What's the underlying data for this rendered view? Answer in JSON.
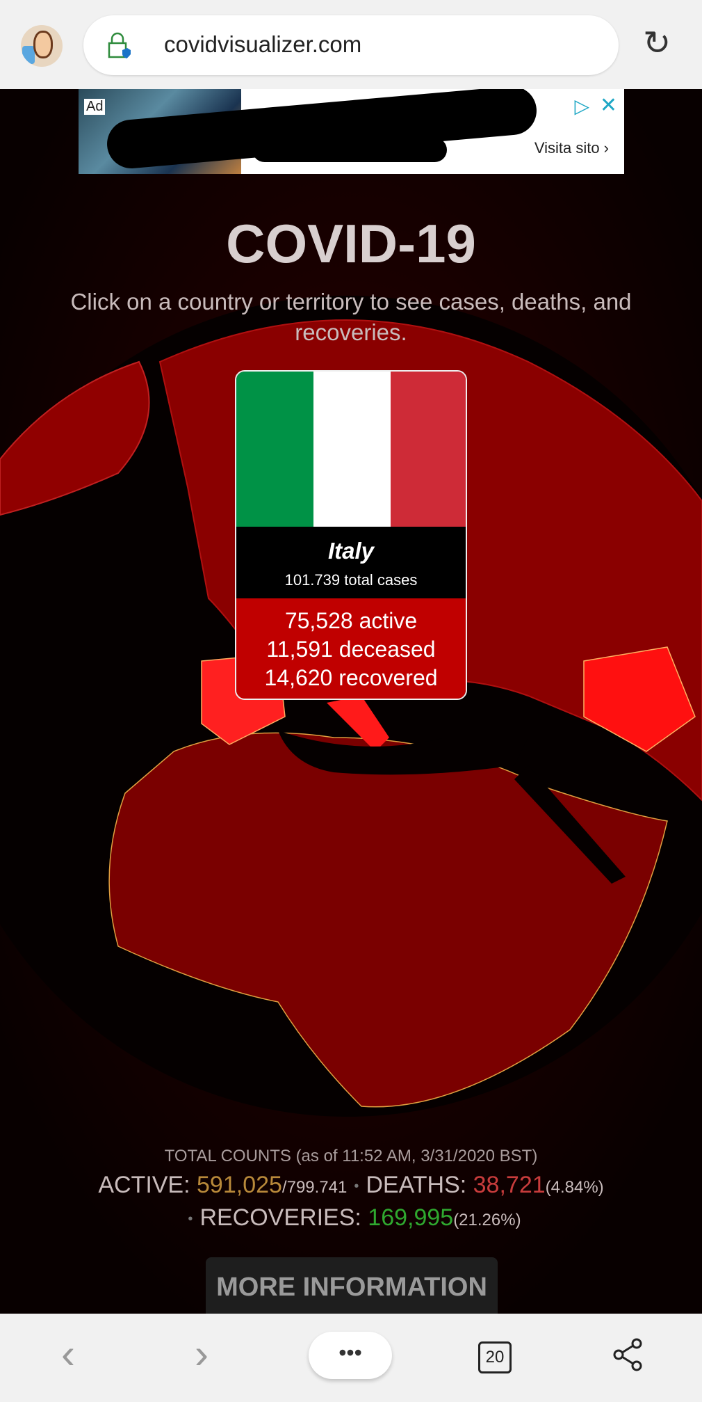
{
  "browser": {
    "url": "covidvisualizer.com",
    "tab_count": "20",
    "menu_label": "•••"
  },
  "ad": {
    "label": "Ad",
    "visit_label": "Visita sito ›",
    "choices_icon": "adchoices-icon",
    "close_label": "✕"
  },
  "page": {
    "title": "COVID-19",
    "subtitle": "Click on a country or territory to see cases, deaths, and recoveries."
  },
  "country_card": {
    "name": "Italy",
    "total": "101.739 total cases",
    "active": "75,528 active",
    "deceased": "11,591 deceased",
    "recovered": "14,620 recovered",
    "flag_colors": [
      "#009246",
      "#ffffff",
      "#ce2b37"
    ]
  },
  "totals": {
    "heading": "TOTAL COUNTS (as of 11:52 AM, 3/31/2020 BST)",
    "active_label": "ACTIVE: ",
    "active_value": "591,025",
    "active_total": "/799.741",
    "deaths_label": "DEATHS: ",
    "deaths_value": "38,721",
    "deaths_pct": "(4.84%)",
    "recoveries_label": "RECOVERIES: ",
    "recoveries_value": "169,995",
    "recoveries_pct": "(21.26%)",
    "colors": {
      "active": "#b8893a",
      "deaths": "#c83c3c",
      "recoveries": "#2fa82f"
    }
  },
  "more_button": "MORE INFORMATION"
}
